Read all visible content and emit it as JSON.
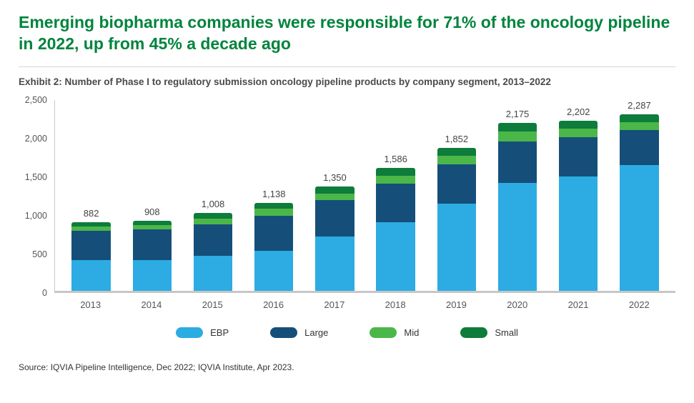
{
  "header": {
    "title": "Emerging biopharma companies were responsible for 71% of the oncology pipeline in 2022, up from 45% a decade ago",
    "exhibit": "Exhibit 2: Number of Phase I to regulatory submission oncology pipeline products by company segment, 2013–2022"
  },
  "footer": {
    "source": "Source: IQVIA Pipeline Intelligence, Dec 2022; IQVIA Institute, Apr 2023."
  },
  "colors": {
    "title_green": "#00843D",
    "ebp_blue": "#2CACE3",
    "large_navy": "#154F79",
    "mid_green": "#4BB749",
    "small_green": "#0E7C3B"
  },
  "chart_data": {
    "type": "bar",
    "stacked": true,
    "title": "Number of Phase I to regulatory submission oncology pipeline products by company segment, 2013–2022",
    "xlabel": "",
    "ylabel": "",
    "ylim": [
      0,
      2500
    ],
    "grid": false,
    "legend_position": "bottom",
    "categories": [
      "2013",
      "2014",
      "2015",
      "2016",
      "2017",
      "2018",
      "2019",
      "2020",
      "2021",
      "2022"
    ],
    "series": [
      {
        "name": "EBP",
        "color": "#2CACE3",
        "values": [
          397,
          400,
          450,
          520,
          700,
          890,
          1130,
          1400,
          1480,
          1624
        ]
      },
      {
        "name": "Large",
        "color": "#154F79",
        "values": [
          380,
          390,
          410,
          450,
          470,
          500,
          510,
          530,
          510,
          460
        ]
      },
      {
        "name": "Mid",
        "color": "#4BB749",
        "values": [
          55,
          60,
          75,
          90,
          90,
          100,
          110,
          130,
          110,
          100
        ]
      },
      {
        "name": "Small",
        "color": "#0E7C3B",
        "values": [
          50,
          58,
          73,
          78,
          90,
          96,
          102,
          115,
          102,
          103
        ]
      }
    ],
    "totals": [
      882,
      908,
      1008,
      1138,
      1350,
      1586,
      1852,
      2175,
      2202,
      2287
    ],
    "totals_labels": [
      "882",
      "908",
      "1,008",
      "1,138",
      "1,350",
      "1,586",
      "1,852",
      "2,175",
      "2,202",
      "2,287"
    ],
    "y_ticks": [
      {
        "value": 0,
        "label": "0"
      },
      {
        "value": 500,
        "label": "500"
      },
      {
        "value": 1000,
        "label": "1,000"
      },
      {
        "value": 1500,
        "label": "1,500"
      },
      {
        "value": 2000,
        "label": "2,000"
      },
      {
        "value": 2500,
        "label": "2,500"
      }
    ],
    "legend": [
      "EBP",
      "Large",
      "Mid",
      "Small"
    ]
  }
}
